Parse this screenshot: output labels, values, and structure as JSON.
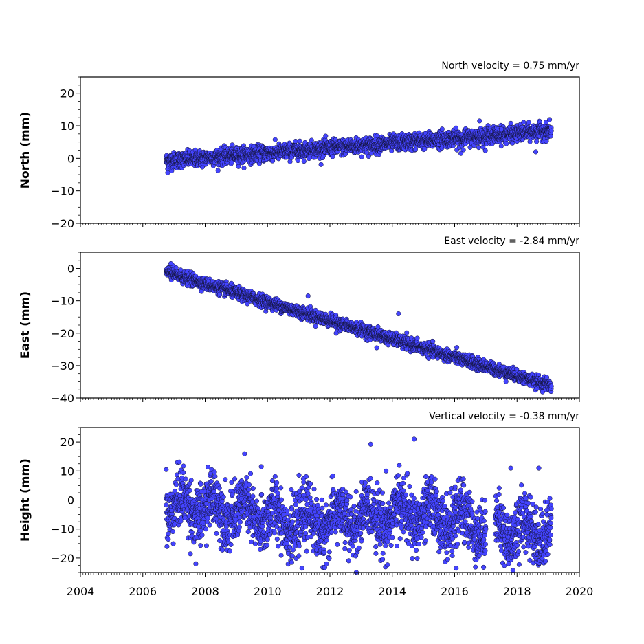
{
  "chart_data": [
    {
      "type": "scatter",
      "title": "North velocity = 0.75 mm/yr",
      "ylabel": "North (mm)",
      "xlim": [
        2004,
        2020
      ],
      "ylim": [
        -20,
        25
      ],
      "yticks": [
        -20,
        -10,
        0,
        10,
        20
      ],
      "ytick_labels": [
        "−20",
        "−10",
        "0",
        "10",
        "20"
      ],
      "marker_color": "#4444ff",
      "x_range": [
        2006.75,
        2019.1
      ],
      "trend": {
        "t0": 2006.75,
        "y0": -0.8,
        "slope": 0.75
      },
      "scatter_sd": 1.2,
      "outliers": [
        [
          2016.8,
          11.5
        ],
        [
          2015.6,
          9
        ],
        [
          2017.5,
          9
        ],
        [
          2006.8,
          -4.4
        ],
        [
          2018.6,
          2
        ],
        [
          2016.2,
          1.5
        ]
      ]
    },
    {
      "type": "scatter",
      "title": "East velocity = -2.84 mm/yr",
      "ylabel": "East (mm)",
      "xlim": [
        2004,
        2020
      ],
      "ylim": [
        -40,
        5
      ],
      "yticks": [
        -40,
        -30,
        -20,
        -10,
        0
      ],
      "ytick_labels": [
        "−40",
        "−30",
        "−20",
        "−10",
        "0"
      ],
      "marker_color": "#4444ff",
      "x_range": [
        2006.75,
        2019.1
      ],
      "trend": {
        "t0": 2006.75,
        "y0": -1.2,
        "slope": -2.84
      },
      "scatter_sd": 0.9,
      "outliers": [
        [
          2011.3,
          -8.5
        ],
        [
          2014.2,
          -14
        ],
        [
          2012.2,
          -20
        ],
        [
          2013.5,
          -24.5
        ],
        [
          2015.3,
          -22.5
        ],
        [
          2018.4,
          -36
        ],
        [
          2006.9,
          1.5
        ]
      ]
    },
    {
      "type": "scatter",
      "title": "Vertical velocity = -0.38 mm/yr",
      "ylabel": "Height (mm)",
      "xlim": [
        2004,
        2020
      ],
      "ylim": [
        -25,
        25
      ],
      "yticks": [
        -20,
        -10,
        0,
        10,
        20
      ],
      "ytick_labels": [
        "−20",
        "−10",
        "0",
        "10",
        "20"
      ],
      "xticks": [
        2004,
        2006,
        2008,
        2010,
        2012,
        2014,
        2016,
        2018,
        2020
      ],
      "xtick_labels": [
        "2004",
        "2006",
        "2008",
        "2010",
        "2012",
        "2014",
        "2016",
        "2018",
        "2020"
      ],
      "marker_color": "#4444ff",
      "x_range": [
        2006.75,
        2019.1
      ],
      "trend": {
        "t0": 2006.75,
        "y0": -4,
        "slope": -0.38
      },
      "scatter_sd": 5.0,
      "gap": [
        2017.0,
        2017.3
      ],
      "outliers": [
        [
          2014.7,
          21
        ],
        [
          2016.05,
          -23.5
        ],
        [
          2011.1,
          -23.5
        ],
        [
          2007.7,
          -22
        ],
        [
          2009.8,
          11.5
        ],
        [
          2017.8,
          11
        ],
        [
          2006.75,
          10.5
        ],
        [
          2013.8,
          10
        ],
        [
          2018.7,
          11
        ]
      ]
    }
  ]
}
